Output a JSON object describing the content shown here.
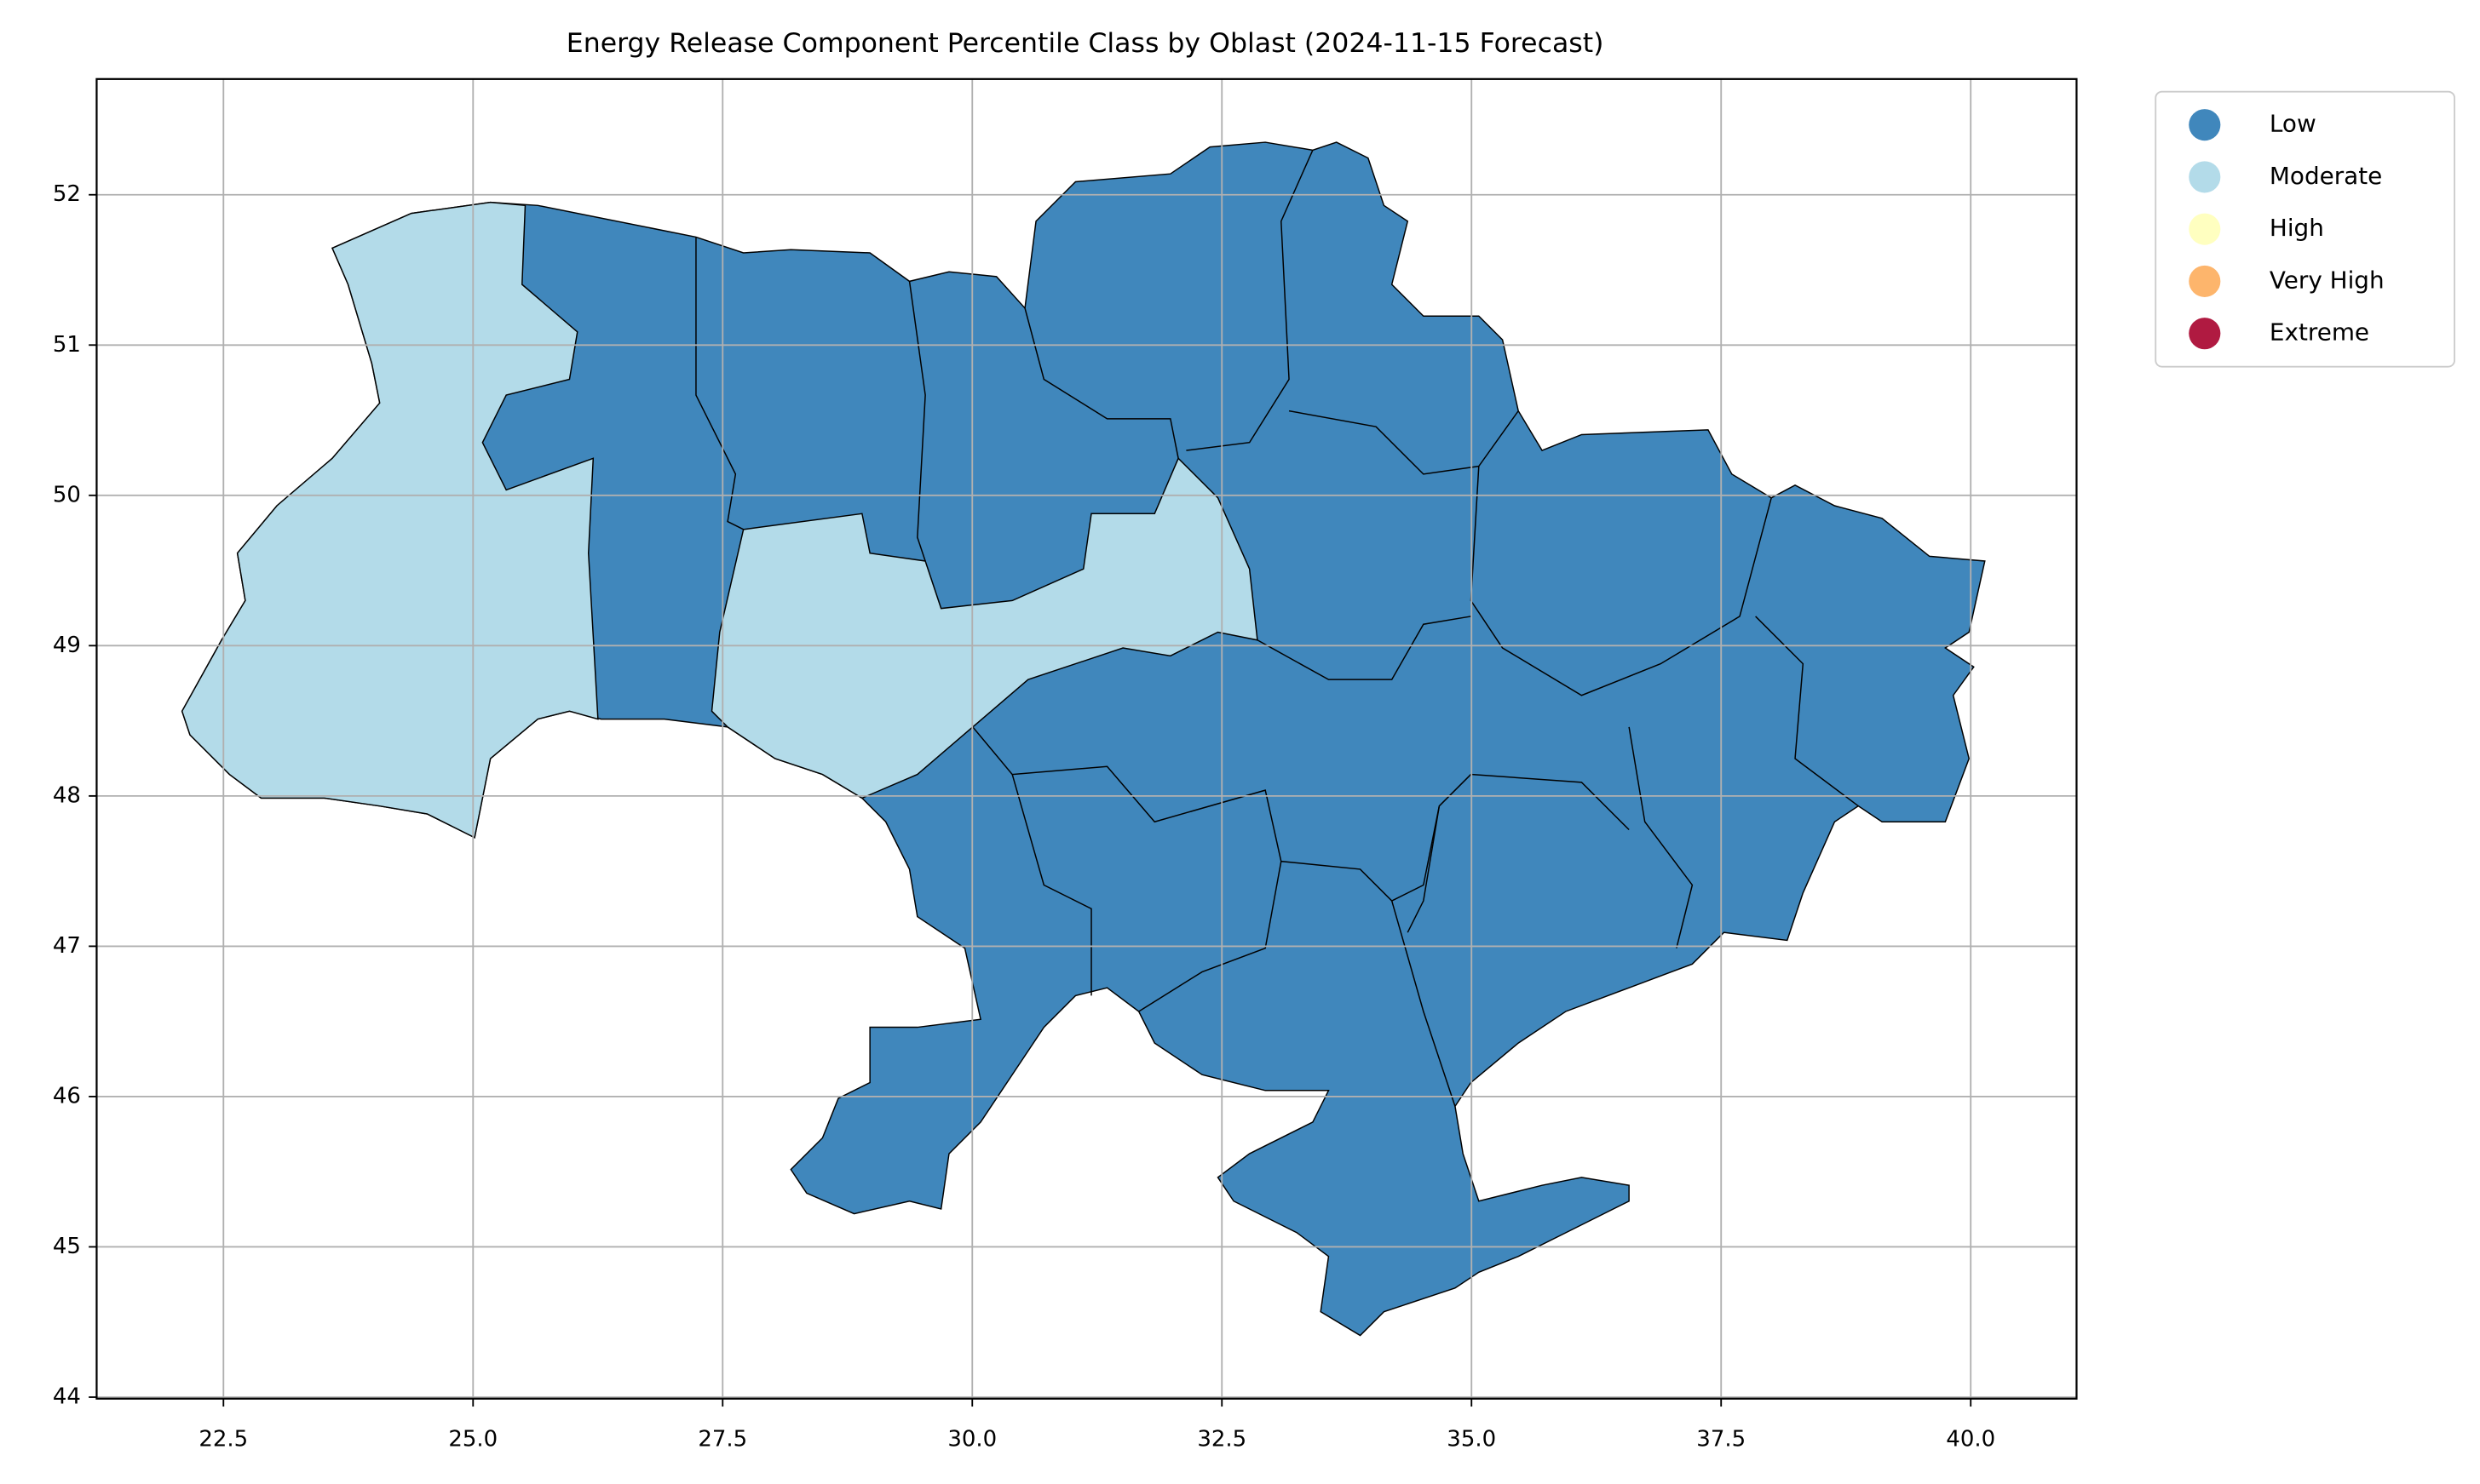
{
  "chart_data": {
    "type": "choropleth",
    "title": "Energy Release Component Percentile Class by Oblast (2024-11-15 Forecast)",
    "classes": [
      {
        "name": "Low",
        "color": "#4087bc"
      },
      {
        "name": "Moderate",
        "color": "#b3dbe9"
      },
      {
        "name": "High",
        "color": "#ffffc0"
      },
      {
        "name": "Very High",
        "color": "#fdb56c"
      },
      {
        "name": "Extreme",
        "color": "#b01a41"
      }
    ],
    "xlim": [
      21.23,
      41.06
    ],
    "ylim": [
      43.99,
      52.77
    ],
    "xticks": [
      22.5,
      {
        "value": 25,
        "label": "25.0"
      },
      27.5,
      {
        "value": 30,
        "label": "30.0"
      },
      32.5,
      {
        "value": 35,
        "label": "35.0"
      },
      37.5,
      {
        "value": 40,
        "label": "40.0"
      }
    ],
    "yticks": [
      44,
      45,
      46,
      47,
      48,
      49,
      50,
      51,
      52
    ],
    "grid": true,
    "legend": "outside upper right"
  }
}
